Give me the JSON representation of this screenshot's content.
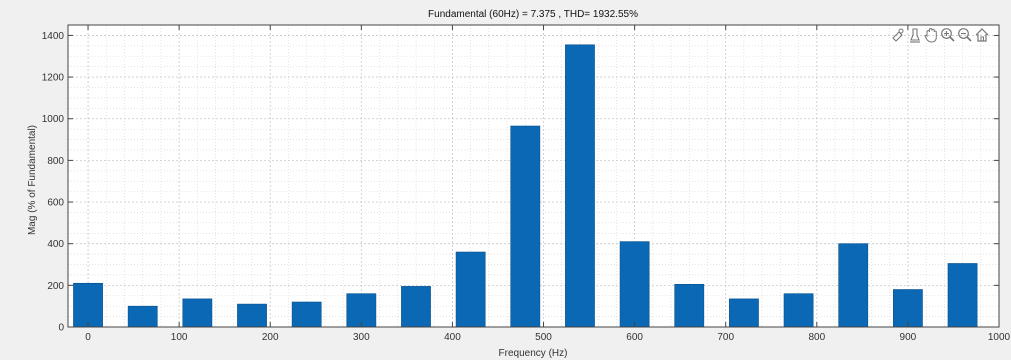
{
  "chart_data": {
    "type": "bar",
    "title": "Fundamental (60Hz) = 7.375 , THD= 1932.55%",
    "xlabel": "Frequency (Hz)",
    "ylabel": "Mag (% of Fundamental)",
    "x": [
      0,
      60,
      120,
      180,
      240,
      300,
      360,
      420,
      480,
      540,
      600,
      660,
      720,
      780,
      840,
      900,
      960
    ],
    "values": [
      210,
      100,
      135,
      110,
      120,
      160,
      195,
      360,
      965,
      1355,
      410,
      205,
      135,
      160,
      400,
      180,
      305
    ],
    "bar_width": 32,
    "xlim": [
      -22,
      1000
    ],
    "ylim": [
      0,
      1450
    ],
    "xticks": [
      0,
      100,
      200,
      300,
      400,
      500,
      600,
      700,
      800,
      900,
      1000
    ],
    "xtick_labels": [
      "0",
      "100",
      "200",
      "300",
      "400",
      "500",
      "600",
      "700",
      "800",
      "900",
      "1000"
    ],
    "yticks": [
      0,
      200,
      400,
      600,
      800,
      1000,
      1200,
      1400
    ],
    "ytick_labels": [
      "0",
      "200",
      "400",
      "600",
      "800",
      "1000",
      "1200",
      "1400"
    ],
    "grid": "major and minor, dotted",
    "bar_color": "#0a68b5"
  },
  "toolbar": {
    "icons": [
      "brush-icon",
      "data-tips-icon",
      "pan-icon",
      "zoom-in-icon",
      "zoom-out-icon",
      "home-icon"
    ]
  },
  "colors": {
    "background": "#f0f0f0",
    "axes_background": "#ffffff",
    "grid": "#d4d4d4",
    "axis": "#444444"
  }
}
